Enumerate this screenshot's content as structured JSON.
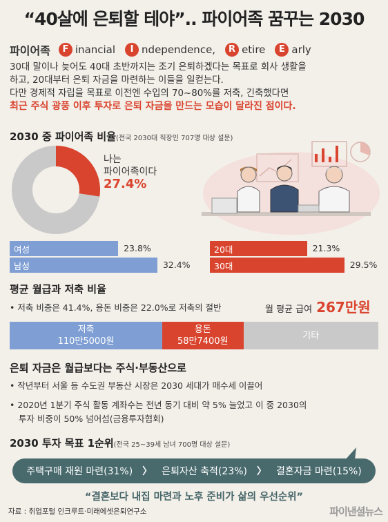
{
  "title": "“40살에 은퇴할 테야”.. 파이어족 꿈꾸는 2030",
  "fire": {
    "label": "파이어족",
    "words": [
      {
        "letter": "F",
        "rest": "inancial"
      },
      {
        "letter": "I",
        "rest": "ndependence,"
      },
      {
        "letter": "R",
        "rest": "etire"
      },
      {
        "letter": "E",
        "rest": "arly"
      }
    ]
  },
  "intro": {
    "line1": "30대 말이나 늦어도 40대 초반까지는 조기 은퇴하겠다는 목표로 회사 생활을",
    "line2": "하고, 20대부터 은퇴 자금을 마련하는 이들을 일컫는다.",
    "line3": "다만 경제적 자립을 목표로 이전엔 수입의 70~80%를 저축, 긴축했다면",
    "line4": "최근 주식 광풍 이후 투자로 은퇴 자금을 만드는 모습이 달라진 점이다."
  },
  "ratio_section": {
    "heading": "2030 중 파이어족 비율",
    "note": "(전국 2030대 직장인 707명 대상 설문)",
    "donut_label_1": "나는",
    "donut_label_2": "파이어족이다",
    "donut_value": "27.4%"
  },
  "avg_section": {
    "heading": "평균 월급과 저축 비율",
    "bullet": "• 저축 비중은 41.4%, 용돈 비중은 22.0%로 저축의 절반",
    "salary_label": "월 평균 급여",
    "salary_value": "267만원"
  },
  "stack_labels": {
    "saving_name": "저축",
    "saving_amount": "110만5000원",
    "allowance_name": "용돈",
    "allowance_amount": "58만7400원",
    "other_name": "기타"
  },
  "invest_section": {
    "heading": "은퇴 자금은 월급보다는 주식·부동산으로",
    "bullet1": "• 작년부터 서울 등 수도권 부동산 시장은 2030 세대가 매수세 이끌어",
    "bullet2": "• 2020년 1분기 주식 활동 계좌수는 전년 동기 대비 약 5% 늘었고 이 중 2030의",
    "bullet3": "투자 비중이 50% 넘어섬(금융투자협회)"
  },
  "goal_section": {
    "heading": "2030 투자 목표 1순위",
    "note": "(전국 25~39세 남녀 700명 대상 설문)",
    "item1": "주택구매 재원 마련(31%)",
    "item2": "은퇴자산 축적(23%)",
    "item3": "결혼자금 마련(15%)",
    "arrow": "〉"
  },
  "quote": "“결혼보다 내집 마련과 노후 준비가 삶의 우선순위”",
  "source": "자료 : 취업포털 인크루트·미래에셋은퇴연구소",
  "brand": "파이낸셜뉴스",
  "colors": {
    "red": "#d9442e",
    "blue": "#7f9fd4",
    "gray": "#c9c9c9",
    "teal": "#496a6d"
  },
  "chart_data": [
    {
      "type": "pie",
      "title": "2030 중 파이어족 비율",
      "slices": [
        {
          "name": "나는 파이어족이다",
          "value": 27.4,
          "color": "#d9442e"
        },
        {
          "name": "",
          "value": 72.6,
          "color": "#c9c9c9"
        }
      ]
    },
    {
      "type": "bar",
      "orientation": "horizontal",
      "categories": [
        "여성",
        "남성"
      ],
      "values": [
        23.8,
        32.4
      ],
      "labels": [
        "23.8%",
        "32.4%"
      ],
      "color": "#7f9fd4"
    },
    {
      "type": "bar",
      "orientation": "horizontal",
      "categories": [
        "20대",
        "30대"
      ],
      "values": [
        21.3,
        29.5
      ],
      "labels": [
        "21.3%",
        "29.5%"
      ],
      "color": "#d9442e"
    },
    {
      "type": "bar",
      "orientation": "stacked",
      "title": "평균 월급과 저축 비율",
      "total": 267,
      "categories": [
        "저축",
        "용돈",
        "기타"
      ],
      "values": [
        41.4,
        22.0,
        36.6
      ],
      "colors": [
        "#7f9fd4",
        "#d9442e",
        "#c9c9c9"
      ]
    }
  ]
}
